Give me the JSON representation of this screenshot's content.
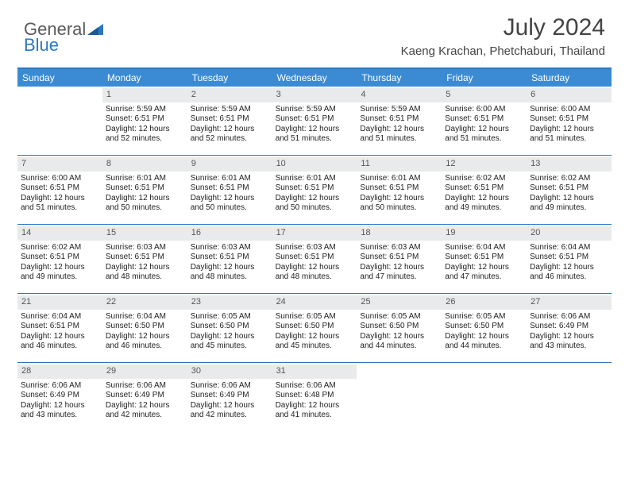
{
  "brand": {
    "word1": "General",
    "word2": "Blue"
  },
  "title": "July 2024",
  "location": "Kaeng Krachan, Phetchaburi, Thailand",
  "day_names": [
    "Sunday",
    "Monday",
    "Tuesday",
    "Wednesday",
    "Thursday",
    "Friday",
    "Saturday"
  ],
  "colors": {
    "header_bg": "#3b8bd4",
    "border": "#2b78c2",
    "daynum_bg": "#e9eaeb"
  },
  "weeks": [
    [
      {
        "n": "",
        "sr": "",
        "ss": "",
        "d1": "",
        "d2": ""
      },
      {
        "n": "1",
        "sr": "Sunrise: 5:59 AM",
        "ss": "Sunset: 6:51 PM",
        "d1": "Daylight: 12 hours",
        "d2": "and 52 minutes."
      },
      {
        "n": "2",
        "sr": "Sunrise: 5:59 AM",
        "ss": "Sunset: 6:51 PM",
        "d1": "Daylight: 12 hours",
        "d2": "and 52 minutes."
      },
      {
        "n": "3",
        "sr": "Sunrise: 5:59 AM",
        "ss": "Sunset: 6:51 PM",
        "d1": "Daylight: 12 hours",
        "d2": "and 51 minutes."
      },
      {
        "n": "4",
        "sr": "Sunrise: 5:59 AM",
        "ss": "Sunset: 6:51 PM",
        "d1": "Daylight: 12 hours",
        "d2": "and 51 minutes."
      },
      {
        "n": "5",
        "sr": "Sunrise: 6:00 AM",
        "ss": "Sunset: 6:51 PM",
        "d1": "Daylight: 12 hours",
        "d2": "and 51 minutes."
      },
      {
        "n": "6",
        "sr": "Sunrise: 6:00 AM",
        "ss": "Sunset: 6:51 PM",
        "d1": "Daylight: 12 hours",
        "d2": "and 51 minutes."
      }
    ],
    [
      {
        "n": "7",
        "sr": "Sunrise: 6:00 AM",
        "ss": "Sunset: 6:51 PM",
        "d1": "Daylight: 12 hours",
        "d2": "and 51 minutes."
      },
      {
        "n": "8",
        "sr": "Sunrise: 6:01 AM",
        "ss": "Sunset: 6:51 PM",
        "d1": "Daylight: 12 hours",
        "d2": "and 50 minutes."
      },
      {
        "n": "9",
        "sr": "Sunrise: 6:01 AM",
        "ss": "Sunset: 6:51 PM",
        "d1": "Daylight: 12 hours",
        "d2": "and 50 minutes."
      },
      {
        "n": "10",
        "sr": "Sunrise: 6:01 AM",
        "ss": "Sunset: 6:51 PM",
        "d1": "Daylight: 12 hours",
        "d2": "and 50 minutes."
      },
      {
        "n": "11",
        "sr": "Sunrise: 6:01 AM",
        "ss": "Sunset: 6:51 PM",
        "d1": "Daylight: 12 hours",
        "d2": "and 50 minutes."
      },
      {
        "n": "12",
        "sr": "Sunrise: 6:02 AM",
        "ss": "Sunset: 6:51 PM",
        "d1": "Daylight: 12 hours",
        "d2": "and 49 minutes."
      },
      {
        "n": "13",
        "sr": "Sunrise: 6:02 AM",
        "ss": "Sunset: 6:51 PM",
        "d1": "Daylight: 12 hours",
        "d2": "and 49 minutes."
      }
    ],
    [
      {
        "n": "14",
        "sr": "Sunrise: 6:02 AM",
        "ss": "Sunset: 6:51 PM",
        "d1": "Daylight: 12 hours",
        "d2": "and 49 minutes."
      },
      {
        "n": "15",
        "sr": "Sunrise: 6:03 AM",
        "ss": "Sunset: 6:51 PM",
        "d1": "Daylight: 12 hours",
        "d2": "and 48 minutes."
      },
      {
        "n": "16",
        "sr": "Sunrise: 6:03 AM",
        "ss": "Sunset: 6:51 PM",
        "d1": "Daylight: 12 hours",
        "d2": "and 48 minutes."
      },
      {
        "n": "17",
        "sr": "Sunrise: 6:03 AM",
        "ss": "Sunset: 6:51 PM",
        "d1": "Daylight: 12 hours",
        "d2": "and 48 minutes."
      },
      {
        "n": "18",
        "sr": "Sunrise: 6:03 AM",
        "ss": "Sunset: 6:51 PM",
        "d1": "Daylight: 12 hours",
        "d2": "and 47 minutes."
      },
      {
        "n": "19",
        "sr": "Sunrise: 6:04 AM",
        "ss": "Sunset: 6:51 PM",
        "d1": "Daylight: 12 hours",
        "d2": "and 47 minutes."
      },
      {
        "n": "20",
        "sr": "Sunrise: 6:04 AM",
        "ss": "Sunset: 6:51 PM",
        "d1": "Daylight: 12 hours",
        "d2": "and 46 minutes."
      }
    ],
    [
      {
        "n": "21",
        "sr": "Sunrise: 6:04 AM",
        "ss": "Sunset: 6:51 PM",
        "d1": "Daylight: 12 hours",
        "d2": "and 46 minutes."
      },
      {
        "n": "22",
        "sr": "Sunrise: 6:04 AM",
        "ss": "Sunset: 6:50 PM",
        "d1": "Daylight: 12 hours",
        "d2": "and 46 minutes."
      },
      {
        "n": "23",
        "sr": "Sunrise: 6:05 AM",
        "ss": "Sunset: 6:50 PM",
        "d1": "Daylight: 12 hours",
        "d2": "and 45 minutes."
      },
      {
        "n": "24",
        "sr": "Sunrise: 6:05 AM",
        "ss": "Sunset: 6:50 PM",
        "d1": "Daylight: 12 hours",
        "d2": "and 45 minutes."
      },
      {
        "n": "25",
        "sr": "Sunrise: 6:05 AM",
        "ss": "Sunset: 6:50 PM",
        "d1": "Daylight: 12 hours",
        "d2": "and 44 minutes."
      },
      {
        "n": "26",
        "sr": "Sunrise: 6:05 AM",
        "ss": "Sunset: 6:50 PM",
        "d1": "Daylight: 12 hours",
        "d2": "and 44 minutes."
      },
      {
        "n": "27",
        "sr": "Sunrise: 6:06 AM",
        "ss": "Sunset: 6:49 PM",
        "d1": "Daylight: 12 hours",
        "d2": "and 43 minutes."
      }
    ],
    [
      {
        "n": "28",
        "sr": "Sunrise: 6:06 AM",
        "ss": "Sunset: 6:49 PM",
        "d1": "Daylight: 12 hours",
        "d2": "and 43 minutes."
      },
      {
        "n": "29",
        "sr": "Sunrise: 6:06 AM",
        "ss": "Sunset: 6:49 PM",
        "d1": "Daylight: 12 hours",
        "d2": "and 42 minutes."
      },
      {
        "n": "30",
        "sr": "Sunrise: 6:06 AM",
        "ss": "Sunset: 6:49 PM",
        "d1": "Daylight: 12 hours",
        "d2": "and 42 minutes."
      },
      {
        "n": "31",
        "sr": "Sunrise: 6:06 AM",
        "ss": "Sunset: 6:48 PM",
        "d1": "Daylight: 12 hours",
        "d2": "and 41 minutes."
      },
      {
        "n": "",
        "sr": "",
        "ss": "",
        "d1": "",
        "d2": ""
      },
      {
        "n": "",
        "sr": "",
        "ss": "",
        "d1": "",
        "d2": ""
      },
      {
        "n": "",
        "sr": "",
        "ss": "",
        "d1": "",
        "d2": ""
      }
    ]
  ]
}
